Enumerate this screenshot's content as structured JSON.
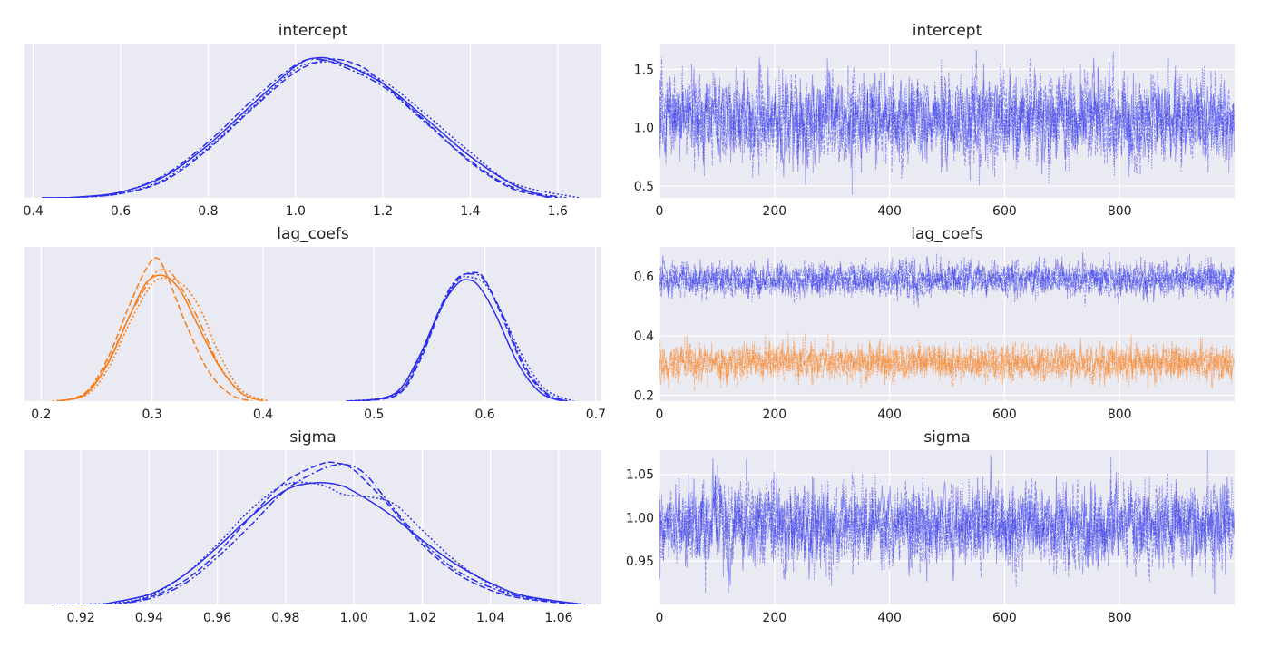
{
  "figure_title": "",
  "colors": {
    "background": "#eaeaf2",
    "blue": "#2a2eec",
    "orange": "#fa7c17",
    "grid": "#ffffff"
  },
  "chart_data": [
    {
      "type": "line",
      "panel": "density",
      "title": "intercept",
      "xlabel": "",
      "ylabel": "",
      "xlim": [
        0.38,
        1.7
      ],
      "ylim": [
        0,
        1.08
      ],
      "xticks": [
        "0.4",
        "0.6",
        "0.8",
        "1.0",
        "1.2",
        "1.4",
        "1.6"
      ],
      "yticks": [],
      "grid": true,
      "series": [
        {
          "color": "#2a2eec",
          "dash": "solid",
          "x": [
            0.42,
            0.5,
            0.6,
            0.7,
            0.8,
            0.9,
            1.0,
            1.05,
            1.1,
            1.2,
            1.3,
            1.4,
            1.5,
            1.58
          ],
          "y": [
            0.0,
            0.005,
            0.04,
            0.15,
            0.37,
            0.65,
            0.92,
            0.98,
            0.95,
            0.8,
            0.55,
            0.29,
            0.09,
            0.0
          ]
        },
        {
          "color": "#2a2eec",
          "dash": "dashed",
          "x": [
            0.43,
            0.5,
            0.6,
            0.7,
            0.8,
            0.9,
            1.0,
            1.08,
            1.15,
            1.2,
            1.3,
            1.4,
            1.5,
            1.6
          ],
          "y": [
            0.0,
            0.004,
            0.03,
            0.12,
            0.34,
            0.62,
            0.88,
            0.97,
            0.92,
            0.8,
            0.53,
            0.25,
            0.06,
            0.0
          ]
        },
        {
          "color": "#2a2eec",
          "dash": "dashdot",
          "x": [
            0.42,
            0.5,
            0.6,
            0.7,
            0.8,
            0.9,
            1.0,
            1.05,
            1.1,
            1.2,
            1.3,
            1.4,
            1.5,
            1.62
          ],
          "y": [
            0.0,
            0.005,
            0.04,
            0.16,
            0.39,
            0.68,
            0.93,
            0.97,
            0.93,
            0.78,
            0.52,
            0.26,
            0.07,
            0.0
          ]
        },
        {
          "color": "#2a2eec",
          "dash": "dotted",
          "x": [
            0.42,
            0.5,
            0.6,
            0.7,
            0.8,
            0.9,
            1.0,
            1.06,
            1.1,
            1.2,
            1.3,
            1.4,
            1.5,
            1.65
          ],
          "y": [
            0.0,
            0.004,
            0.03,
            0.13,
            0.35,
            0.63,
            0.9,
            0.95,
            0.94,
            0.82,
            0.58,
            0.32,
            0.1,
            0.0
          ]
        }
      ]
    },
    {
      "type": "line",
      "panel": "trace",
      "title": "intercept",
      "xlabel": "",
      "ylabel": "",
      "xlim": [
        0,
        1000
      ],
      "ylim": [
        0.4,
        1.72
      ],
      "xticks": [
        "0",
        "200",
        "400",
        "600",
        "800"
      ],
      "yticks": [
        "0.5",
        "1.0",
        "1.5"
      ],
      "grid": true,
      "series": [
        {
          "color": "#2a2eec",
          "trace_mean": 1.07,
          "trace_sd": 0.18,
          "n_draws": 1000,
          "chains": 4
        }
      ]
    },
    {
      "type": "line",
      "panel": "density",
      "title": "lag_coefs",
      "xlabel": "",
      "ylabel": "",
      "xlim": [
        0.185,
        0.705
      ],
      "ylim": [
        0,
        1.08
      ],
      "xticks": [
        "0.2",
        "0.3",
        "0.4",
        "0.5",
        "0.6",
        "0.7"
      ],
      "yticks": [],
      "grid": true,
      "series": [
        {
          "color": "#fa7c17",
          "dash": "solid",
          "x": [
            0.215,
            0.24,
            0.26,
            0.28,
            0.295,
            0.31,
            0.325,
            0.34,
            0.36,
            0.38,
            0.4
          ],
          "y": [
            0.0,
            0.05,
            0.26,
            0.6,
            0.83,
            0.88,
            0.78,
            0.55,
            0.25,
            0.06,
            0.0
          ]
        },
        {
          "color": "#fa7c17",
          "dash": "dashed",
          "x": [
            0.215,
            0.24,
            0.26,
            0.28,
            0.295,
            0.305,
            0.315,
            0.33,
            0.35,
            0.37,
            0.39
          ],
          "y": [
            0.0,
            0.06,
            0.3,
            0.68,
            0.93,
            1.0,
            0.85,
            0.55,
            0.22,
            0.05,
            0.0
          ]
        },
        {
          "color": "#fa7c17",
          "dash": "dashdot",
          "x": [
            0.215,
            0.24,
            0.26,
            0.28,
            0.3,
            0.31,
            0.32,
            0.34,
            0.36,
            0.38,
            0.4
          ],
          "y": [
            0.0,
            0.05,
            0.27,
            0.6,
            0.87,
            0.92,
            0.87,
            0.6,
            0.26,
            0.06,
            0.0
          ]
        },
        {
          "color": "#fa7c17",
          "dash": "dotted",
          "x": [
            0.21,
            0.24,
            0.26,
            0.28,
            0.3,
            0.315,
            0.33,
            0.345,
            0.36,
            0.38,
            0.405
          ],
          "y": [
            0.0,
            0.04,
            0.22,
            0.55,
            0.82,
            0.86,
            0.8,
            0.62,
            0.34,
            0.08,
            0.0
          ]
        },
        {
          "color": "#2a2eec",
          "dash": "solid",
          "x": [
            0.49,
            0.52,
            0.54,
            0.56,
            0.575,
            0.585,
            0.595,
            0.61,
            0.63,
            0.65,
            0.67
          ],
          "y": [
            0.0,
            0.06,
            0.3,
            0.65,
            0.82,
            0.85,
            0.8,
            0.6,
            0.26,
            0.06,
            0.0
          ]
        },
        {
          "color": "#2a2eec",
          "dash": "dashed",
          "x": [
            0.475,
            0.52,
            0.54,
            0.56,
            0.575,
            0.59,
            0.6,
            0.615,
            0.635,
            0.655,
            0.675
          ],
          "y": [
            0.0,
            0.04,
            0.26,
            0.64,
            0.85,
            0.9,
            0.85,
            0.6,
            0.24,
            0.05,
            0.0
          ]
        },
        {
          "color": "#2a2eec",
          "dash": "dashdot",
          "x": [
            0.48,
            0.52,
            0.54,
            0.56,
            0.575,
            0.59,
            0.6,
            0.615,
            0.635,
            0.655,
            0.675
          ],
          "y": [
            0.0,
            0.05,
            0.28,
            0.66,
            0.86,
            0.89,
            0.84,
            0.62,
            0.26,
            0.06,
            0.0
          ]
        },
        {
          "color": "#2a2eec",
          "dash": "dotted",
          "x": [
            0.475,
            0.52,
            0.54,
            0.56,
            0.575,
            0.585,
            0.6,
            0.615,
            0.635,
            0.655,
            0.68
          ],
          "y": [
            0.0,
            0.05,
            0.28,
            0.64,
            0.84,
            0.87,
            0.82,
            0.62,
            0.3,
            0.08,
            0.0
          ]
        }
      ]
    },
    {
      "type": "line",
      "panel": "trace",
      "title": "lag_coefs",
      "xlabel": "",
      "ylabel": "",
      "xlim": [
        0,
        1000
      ],
      "ylim": [
        0.18,
        0.7
      ],
      "xticks": [
        "0",
        "200",
        "400",
        "600",
        "800"
      ],
      "yticks": [
        "0.2",
        "0.4",
        "0.6"
      ],
      "grid": true,
      "series": [
        {
          "color": "#2a2eec",
          "trace_mean": 0.59,
          "trace_sd": 0.028,
          "n_draws": 1000,
          "chains": 4
        },
        {
          "color": "#fa7c17",
          "trace_mean": 0.31,
          "trace_sd": 0.03,
          "n_draws": 1000,
          "chains": 4
        }
      ]
    },
    {
      "type": "line",
      "panel": "density",
      "title": "sigma",
      "xlabel": "",
      "ylabel": "",
      "xlim": [
        0.9035,
        1.0725
      ],
      "ylim": [
        0,
        1.08
      ],
      "xticks": [
        "0.92",
        "0.94",
        "0.96",
        "0.98",
        "1.00",
        "1.02",
        "1.04",
        "1.06"
      ],
      "yticks": [],
      "grid": true,
      "series": [
        {
          "color": "#2a2eec",
          "dash": "solid",
          "x": [
            0.926,
            0.94,
            0.95,
            0.96,
            0.97,
            0.98,
            0.988,
            0.995,
            1.0,
            1.01,
            1.02,
            1.03,
            1.04,
            1.05,
            1.067
          ],
          "y": [
            0.0,
            0.07,
            0.2,
            0.4,
            0.62,
            0.8,
            0.85,
            0.84,
            0.79,
            0.64,
            0.45,
            0.28,
            0.15,
            0.06,
            0.0
          ]
        },
        {
          "color": "#2a2eec",
          "dash": "dashed",
          "x": [
            0.93,
            0.94,
            0.95,
            0.96,
            0.97,
            0.98,
            0.99,
            0.995,
            1.0,
            1.01,
            1.02,
            1.03,
            1.04,
            1.05,
            1.065
          ],
          "y": [
            0.0,
            0.05,
            0.16,
            0.36,
            0.62,
            0.86,
            0.98,
            0.99,
            0.94,
            0.7,
            0.42,
            0.22,
            0.1,
            0.04,
            0.0
          ]
        },
        {
          "color": "#2a2eec",
          "dash": "dashdot",
          "x": [
            0.93,
            0.94,
            0.95,
            0.96,
            0.97,
            0.98,
            0.99,
            0.997,
            1.003,
            1.01,
            1.02,
            1.03,
            1.04,
            1.05,
            1.068
          ],
          "y": [
            0.0,
            0.04,
            0.14,
            0.33,
            0.56,
            0.8,
            0.94,
            0.98,
            0.92,
            0.72,
            0.44,
            0.24,
            0.12,
            0.05,
            0.0
          ]
        },
        {
          "color": "#2a2eec",
          "dash": "dotted",
          "x": [
            0.912,
            0.93,
            0.94,
            0.95,
            0.96,
            0.97,
            0.98,
            0.99,
            0.997,
            1.005,
            1.012,
            1.02,
            1.03,
            1.04,
            1.05,
            1.068
          ],
          "y": [
            0.0,
            0.01,
            0.06,
            0.2,
            0.42,
            0.67,
            0.84,
            0.84,
            0.77,
            0.75,
            0.7,
            0.52,
            0.3,
            0.14,
            0.05,
            0.0
          ]
        }
      ]
    },
    {
      "type": "line",
      "panel": "trace",
      "title": "sigma",
      "xlabel": "",
      "ylabel": "",
      "xlim": [
        0,
        1000
      ],
      "ylim": [
        0.9,
        1.078
      ],
      "xticks": [
        "0",
        "200",
        "400",
        "600",
        "800"
      ],
      "yticks": [
        "0.95",
        "1.00",
        "1.05"
      ],
      "grid": true,
      "series": [
        {
          "color": "#2a2eec",
          "trace_mean": 0.992,
          "trace_sd": 0.023,
          "n_draws": 1000,
          "chains": 4
        }
      ]
    }
  ]
}
